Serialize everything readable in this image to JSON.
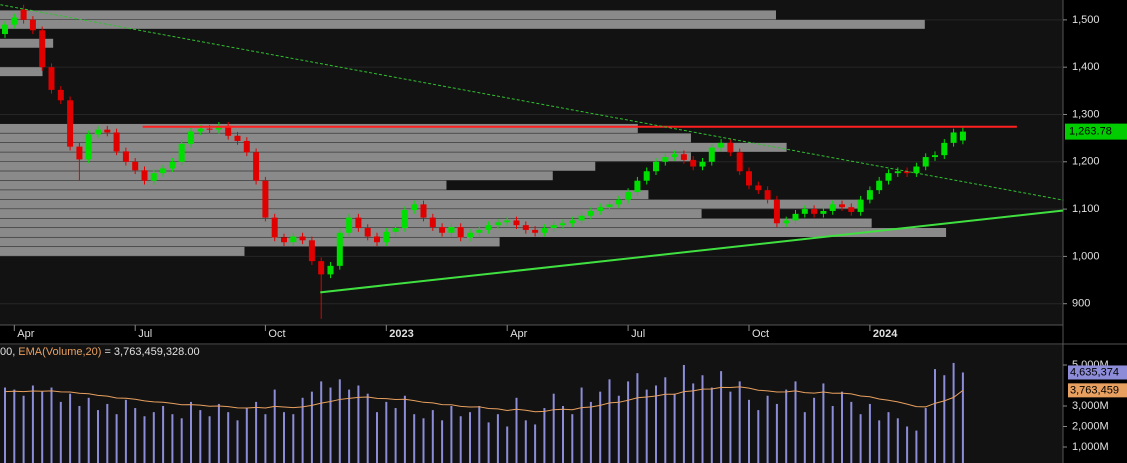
{
  "chart_data": [
    {
      "type": "candlestick",
      "categories": [
        null,
        "Apr",
        null,
        null,
        null,
        null,
        null,
        null,
        null,
        null,
        null,
        null,
        null,
        null,
        "Jul",
        null,
        null,
        null,
        null,
        null,
        null,
        null,
        null,
        null,
        null,
        null,
        null,
        null,
        "Oct",
        null,
        null,
        null,
        null,
        null,
        null,
        null,
        null,
        null,
        null,
        null,
        null,
        "2023",
        null,
        null,
        null,
        null,
        null,
        null,
        null,
        null,
        null,
        null,
        null,
        null,
        "Apr",
        null,
        null,
        null,
        null,
        null,
        null,
        null,
        null,
        null,
        null,
        null,
        null,
        "Jul",
        null,
        null,
        null,
        null,
        null,
        null,
        null,
        null,
        null,
        null,
        null,
        null,
        "Oct",
        null,
        null,
        null,
        null,
        null,
        null,
        null,
        null,
        null,
        null,
        null,
        null,
        "2024",
        null,
        null,
        null,
        null,
        null,
        null,
        null,
        null,
        null,
        null
      ],
      "open": [
        1470,
        1490,
        1522,
        1500,
        1478,
        1400,
        1352,
        1330,
        1232,
        1205,
        1258,
        1268,
        1262,
        1222,
        1200,
        1182,
        1160,
        1176,
        1186,
        1200,
        1238,
        1264,
        1270,
        1268,
        1276,
        1255,
        1244,
        1220,
        1160,
        1082,
        1040,
        1030,
        1042,
        1034,
        990,
        962,
        980,
        1050,
        1082,
        1060,
        1042,
        1030,
        1052,
        1060,
        1098,
        1110,
        1082,
        1062,
        1050,
        1062,
        1040,
        1050,
        1056,
        1066,
        1072,
        1076,
        1066,
        1056,
        1050,
        1060,
        1066,
        1070,
        1076,
        1086,
        1096,
        1104,
        1110,
        1120,
        1136,
        1160,
        1180,
        1200,
        1210,
        1216,
        1204,
        1190,
        1200,
        1230,
        1240,
        1220,
        1180,
        1150,
        1140,
        1120,
        1070,
        1076,
        1090,
        1100,
        1090,
        1096,
        1110,
        1104,
        1094,
        1120,
        1140,
        1160,
        1176,
        1180,
        1176,
        1190,
        1210,
        1214,
        1240,
        1245
      ],
      "high": [
        1498,
        1513,
        1532,
        1508,
        1486,
        1408,
        1360,
        1338,
        1240,
        1266,
        1276,
        1276,
        1270,
        1230,
        1208,
        1190,
        1184,
        1194,
        1208,
        1246,
        1272,
        1278,
        1278,
        1284,
        1284,
        1263,
        1252,
        1228,
        1168,
        1090,
        1048,
        1050,
        1050,
        1042,
        998,
        988,
        1058,
        1090,
        1090,
        1068,
        1050,
        1060,
        1068,
        1106,
        1118,
        1118,
        1090,
        1070,
        1070,
        1070,
        1058,
        1064,
        1074,
        1080,
        1084,
        1084,
        1074,
        1064,
        1068,
        1074,
        1078,
        1084,
        1094,
        1104,
        1112,
        1118,
        1128,
        1144,
        1168,
        1188,
        1208,
        1218,
        1224,
        1224,
        1212,
        1208,
        1238,
        1248,
        1248,
        1228,
        1188,
        1158,
        1148,
        1128,
        1084,
        1098,
        1108,
        1108,
        1104,
        1118,
        1118,
        1112,
        1128,
        1148,
        1168,
        1184,
        1188,
        1188,
        1198,
        1218,
        1222,
        1248,
        1270,
        1272
      ],
      "low": [
        1462,
        1482,
        1492,
        1470,
        1392,
        1344,
        1322,
        1224,
        1160,
        1197,
        1250,
        1254,
        1214,
        1192,
        1174,
        1152,
        1152,
        1168,
        1178,
        1192,
        1230,
        1256,
        1260,
        1260,
        1247,
        1236,
        1212,
        1152,
        1074,
        1032,
        1022,
        1022,
        1026,
        982,
        868,
        954,
        972,
        1042,
        1052,
        1034,
        1022,
        1022,
        1044,
        1052,
        1090,
        1074,
        1054,
        1042,
        1042,
        1032,
        1032,
        1042,
        1048,
        1058,
        1064,
        1058,
        1048,
        1042,
        1042,
        1052,
        1058,
        1062,
        1068,
        1078,
        1088,
        1096,
        1102,
        1112,
        1128,
        1152,
        1172,
        1192,
        1202,
        1196,
        1182,
        1182,
        1192,
        1222,
        1212,
        1172,
        1142,
        1132,
        1112,
        1062,
        1062,
        1068,
        1082,
        1082,
        1082,
        1088,
        1096,
        1086,
        1086,
        1112,
        1132,
        1152,
        1168,
        1168,
        1168,
        1182,
        1202,
        1206,
        1232,
        1237
      ],
      "close": [
        1490,
        1505,
        1500,
        1478,
        1400,
        1352,
        1330,
        1232,
        1205,
        1258,
        1268,
        1262,
        1222,
        1200,
        1182,
        1160,
        1176,
        1186,
        1200,
        1238,
        1264,
        1270,
        1268,
        1276,
        1255,
        1244,
        1220,
        1160,
        1082,
        1040,
        1030,
        1042,
        1034,
        990,
        962,
        980,
        1050,
        1082,
        1060,
        1042,
        1030,
        1052,
        1060,
        1098,
        1110,
        1082,
        1062,
        1050,
        1062,
        1040,
        1050,
        1056,
        1066,
        1072,
        1076,
        1066,
        1056,
        1050,
        1060,
        1066,
        1070,
        1076,
        1086,
        1096,
        1104,
        1110,
        1120,
        1136,
        1160,
        1180,
        1200,
        1210,
        1216,
        1204,
        1190,
        1200,
        1230,
        1240,
        1220,
        1180,
        1150,
        1140,
        1120,
        1070,
        1076,
        1090,
        1100,
        1090,
        1096,
        1110,
        1104,
        1094,
        1120,
        1140,
        1160,
        1176,
        1180,
        1176,
        1190,
        1210,
        1214,
        1240,
        1262,
        1263.78
      ],
      "last_label": "1,263.78",
      "up_color": "#00e000",
      "down_color": "#e00000",
      "tag_color": "#00cc00",
      "ylim": [
        855,
        1542
      ],
      "yticks": [
        900,
        {
          "value": 1000,
          "label": "1,000"
        },
        {
          "value": 1100,
          "label": "1,100"
        },
        {
          "value": 1200,
          "label": "1,200"
        },
        {
          "value": 1300,
          "label": "1,300"
        },
        {
          "value": 1400,
          "label": "1,400"
        },
        {
          "value": 1500,
          "label": "1,500"
        }
      ],
      "volume_profile": {
        "color": "#8a8a8a",
        "bins": [
          1000,
          1020,
          1040,
          1060,
          1080,
          1100,
          1120,
          1140,
          1160,
          1180,
          1200,
          1220,
          1240,
          1260,
          1280,
          1300,
          1320,
          1340,
          1360,
          1380,
          1400,
          1420,
          1440,
          1460,
          1480,
          1500,
          1520
        ],
        "values": [
          23,
          47,
          89,
          82,
          66,
          81,
          61,
          42,
          52,
          56,
          65,
          74,
          65,
          60,
          0,
          0,
          0,
          0,
          0,
          4,
          0,
          0,
          5,
          0,
          87,
          73
        ]
      },
      "trendlines": [
        {
          "color": "#ff2020",
          "style": "solid",
          "x": [
            14.8,
            108.8
          ],
          "y": [
            1274,
            1274
          ]
        },
        {
          "color": "#30c030",
          "style": "dashed",
          "x": [
            -0.5,
            113.8
          ],
          "y": [
            1532,
            1119
          ]
        },
        {
          "color": "#40e040",
          "style": "solid",
          "x": [
            33.9,
            113.8
          ],
          "y": [
            924,
            1097
          ]
        }
      ]
    },
    {
      "type": "bar",
      "header": [
        "00,",
        "EMA(Volume,20)",
        "= 3,763,459,328.00"
      ],
      "ylim": [
        220,
        5975
      ],
      "yticks": [
        {
          "value": 1000,
          "label": "1,000M"
        },
        {
          "value": 2000,
          "label": "2,000M"
        },
        {
          "value": 3000,
          "label": "3,000M"
        },
        {
          "value": 5000,
          "label": "5,000M"
        }
      ],
      "series": [
        {
          "name": "Volume",
          "color": "#8c8cd8",
          "last_label": "4,635,374",
          "values": [
            3900,
            3800,
            3500,
            4000,
            3700,
            3900,
            3200,
            3600,
            3000,
            3400,
            2800,
            3100,
            2600,
            3300,
            2900,
            2500,
            2700,
            3000,
            2600,
            2400,
            3200,
            2800,
            2500,
            3100,
            2700,
            2300,
            2900,
            3200,
            2600,
            3800,
            2700,
            2600,
            3400,
            3700,
            4200,
            3900,
            4300,
            3800,
            4000,
            3600,
            2700,
            3200,
            2900,
            3500,
            2600,
            2400,
            2800,
            2300,
            3000,
            2500,
            2700,
            3000,
            2200,
            2600,
            2000,
            3400,
            2300,
            2100,
            2900,
            3600,
            3000,
            2600,
            3900,
            3200,
            3700,
            4300,
            3500,
            4200,
            4600,
            3800,
            4000,
            4400,
            3600,
            5000,
            4100,
            4500,
            3900,
            4700,
            3700,
            4200,
            3300,
            2800,
            3500,
            3100,
            3800,
            4200,
            2700,
            3400,
            4100,
            3000,
            3700,
            3200,
            2600,
            3100,
            2300,
            2700,
            2400,
            2000,
            1800,
            2900,
            4800,
            4500,
            5100,
            4635.374
          ]
        },
        {
          "name": "EMA(Volume,20)",
          "type": "line",
          "color": "#e8a060",
          "last_label": "3,763,459",
          "values": [
            3700,
            3720,
            3700,
            3730,
            3720,
            3740,
            3690,
            3680,
            3620,
            3600,
            3520,
            3480,
            3390,
            3380,
            3330,
            3250,
            3200,
            3180,
            3130,
            3060,
            3070,
            3040,
            2990,
            3000,
            2970,
            2910,
            2900,
            2930,
            2900,
            2980,
            2950,
            2920,
            2960,
            3030,
            3140,
            3220,
            3320,
            3370,
            3420,
            3440,
            3370,
            3360,
            3320,
            3330,
            3260,
            3180,
            3150,
            3070,
            3060,
            2980,
            2950,
            2960,
            2880,
            2860,
            2780,
            2840,
            2790,
            2720,
            2740,
            2820,
            2840,
            2820,
            2920,
            2950,
            3030,
            3150,
            3180,
            3280,
            3400,
            3440,
            3490,
            3570,
            3570,
            3700,
            3740,
            3820,
            3830,
            3910,
            3900,
            3930,
            3870,
            3770,
            3740,
            3680,
            3690,
            3740,
            3650,
            3630,
            3680,
            3620,
            3630,
            3590,
            3490,
            3450,
            3340,
            3280,
            3200,
            3090,
            2970,
            2960,
            3130,
            3250,
            3420,
            3763.459
          ]
        }
      ]
    }
  ]
}
